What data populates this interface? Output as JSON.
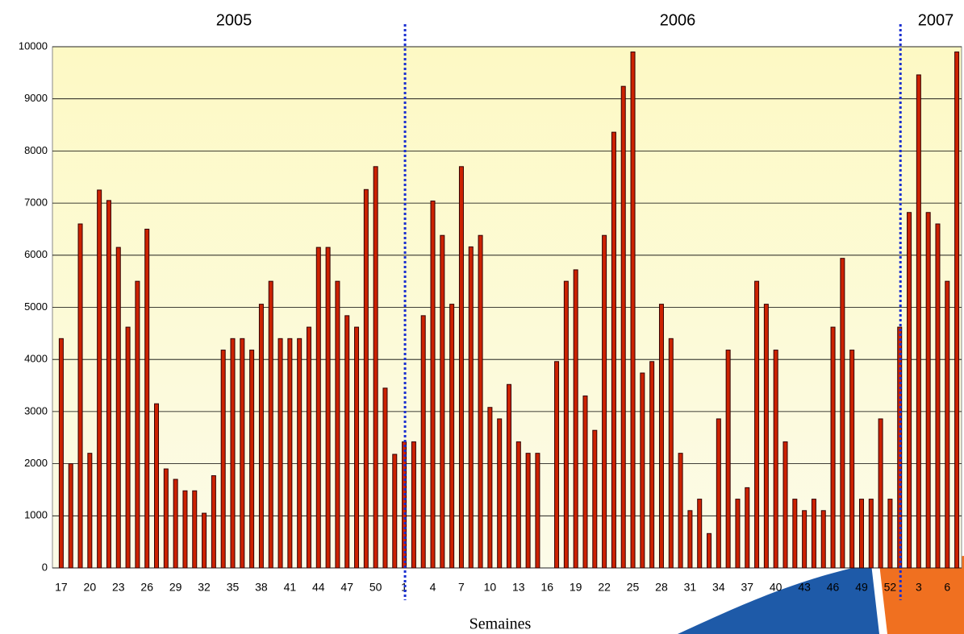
{
  "chart_data": {
    "type": "bar",
    "annotations": [
      "2005",
      "2006",
      "2007"
    ],
    "xlabel": "Semaines",
    "categories": [
      17,
      null,
      null,
      20,
      null,
      null,
      23,
      null,
      null,
      26,
      null,
      null,
      29,
      null,
      null,
      32,
      null,
      null,
      35,
      null,
      null,
      38,
      null,
      null,
      41,
      null,
      null,
      44,
      null,
      null,
      47,
      null,
      null,
      50,
      null,
      null,
      1,
      null,
      null,
      4,
      null,
      null,
      7,
      null,
      null,
      10,
      null,
      null,
      13,
      null,
      null,
      16,
      null,
      null,
      19,
      null,
      null,
      22,
      null,
      null,
      25,
      null,
      null,
      28,
      null,
      null,
      31,
      null,
      null,
      34,
      null,
      null,
      37,
      null,
      null,
      40,
      null,
      null,
      43,
      null,
      null,
      46,
      null,
      null,
      49,
      null,
      null,
      52,
      null,
      null,
      3,
      null,
      null,
      6,
      null
    ],
    "values": [
      4400,
      2000,
      6600,
      2200,
      7250,
      7050,
      6150,
      4620,
      5500,
      6500,
      3150,
      1900,
      1700,
      1480,
      1480,
      1050,
      1770,
      4180,
      4400,
      4400,
      4180,
      5060,
      5500,
      4400,
      4400,
      4400,
      4620,
      6150,
      6150,
      5500,
      4840,
      4620,
      7260,
      7700,
      3450,
      2180,
      2420,
      2420,
      4840,
      7040,
      6380,
      5060,
      7700,
      6160,
      6380,
      3080,
      2860,
      3520,
      2420,
      2200,
      2200,
      0,
      3960,
      5500,
      5720,
      3300,
      2640,
      6380,
      8360,
      9240,
      9900,
      3740,
      3960,
      5060,
      4400,
      2200,
      1100,
      1320,
      660,
      2860,
      4180,
      1320,
      1540,
      5500,
      5060,
      4180,
      2420,
      1320,
      1100,
      1320,
      1100,
      4620,
      5940,
      4180,
      1320,
      1320,
      2860,
      1320,
      4620,
      6820,
      9460,
      6820,
      6600,
      5500,
      9900
    ],
    "color": "#cc2200",
    "ylim": [
      0,
      10000
    ],
    "yticks": [
      0,
      1000,
      2000,
      3000,
      4000,
      5000,
      6000,
      7000,
      8000,
      9000,
      10000
    ],
    "grid": true
  }
}
